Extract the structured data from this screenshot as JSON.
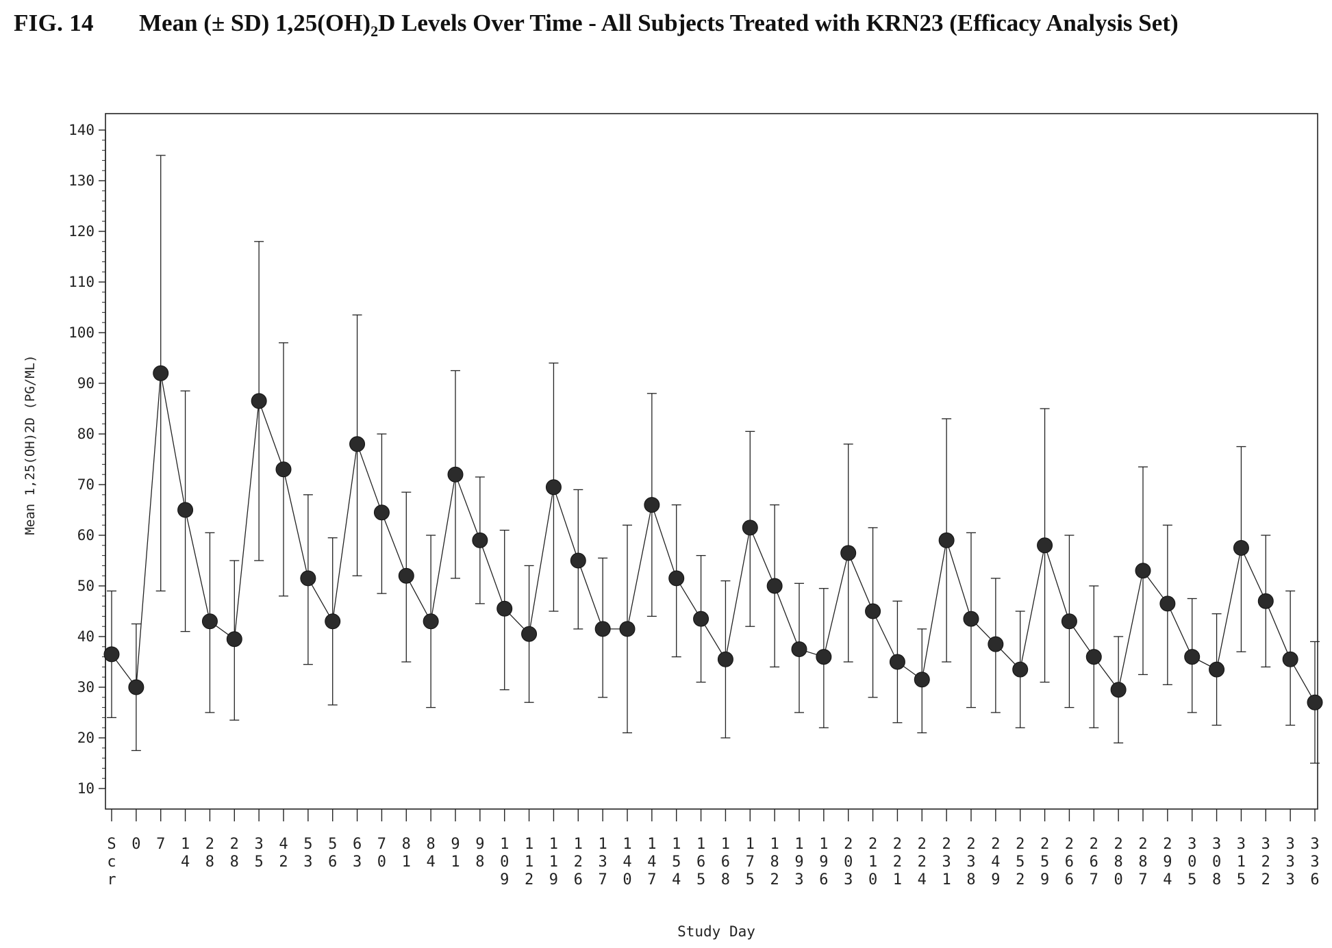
{
  "figure": {
    "label": "FIG. 14",
    "title_main": "Mean (± SD) 1,25(OH)",
    "title_sub": "2",
    "title_rest": "D Levels Over Time - All Subjects Treated with KRN23 (Efficacy Analysis Set)"
  },
  "chart_data": {
    "type": "line",
    "title": "Mean (± SD) 1,25(OH)2D Levels Over Time - All Subjects Treated with KRN23 (Efficacy Analysis Set)",
    "xlabel": "Study Day",
    "ylabel": "Mean 1,25(OH)2D (PG/ML)",
    "ylim": [
      10,
      140
    ],
    "yticks": [
      10,
      20,
      30,
      40,
      50,
      60,
      70,
      80,
      90,
      100,
      110,
      120,
      130,
      140
    ],
    "grid": false,
    "marker": "filled circle",
    "error_bars": "± SD",
    "categories": [
      "Scr",
      "0",
      "7",
      "14",
      "28",
      "28",
      "35",
      "42",
      "53",
      "56",
      "63",
      "70",
      "81",
      "84",
      "91",
      "98",
      "109",
      "112",
      "119",
      "126",
      "137",
      "140",
      "147",
      "154",
      "165",
      "168",
      "175",
      "182",
      "193",
      "196",
      "203",
      "210",
      "221",
      "224",
      "231",
      "238",
      "249",
      "252",
      "259",
      "266",
      "267",
      "280",
      "287",
      "294",
      "305",
      "308",
      "315",
      "322",
      "333",
      "336"
    ],
    "values": [
      36.5,
      30,
      92,
      65,
      43,
      39.5,
      86.5,
      73,
      51.5,
      43,
      78,
      64.5,
      52,
      43,
      72,
      59,
      45.5,
      40.5,
      69.5,
      55,
      41.5,
      41.5,
      66,
      51.5,
      43.5,
      35.5,
      61.5,
      50,
      37.5,
      36,
      56.5,
      45,
      35,
      31.5,
      59,
      43.5,
      38.5,
      33.5,
      58,
      43,
      36,
      29.5,
      53,
      46.5,
      36,
      33.5,
      57.5,
      47,
      35.5,
      27
    ],
    "upper": [
      49,
      42.5,
      135,
      88.5,
      60.5,
      55,
      118,
      98,
      68,
      59.5,
      103.5,
      80,
      68.5,
      60,
      92.5,
      71.5,
      61,
      54,
      94,
      69,
      55.5,
      62,
      88,
      66,
      56,
      51,
      80.5,
      66,
      50.5,
      49.5,
      78,
      61.5,
      47,
      41.5,
      83,
      60.5,
      51.5,
      45,
      85,
      60,
      50,
      40,
      73.5,
      62,
      47.5,
      44.5,
      77.5,
      60,
      49,
      39
    ],
    "lower": [
      24,
      17.5,
      49,
      41,
      25,
      23.5,
      55,
      48,
      34.5,
      26.5,
      52,
      48.5,
      35,
      26,
      51.5,
      46.5,
      29.5,
      27,
      45,
      41.5,
      28,
      21,
      44,
      36,
      31,
      20,
      42,
      34,
      25,
      22,
      35,
      28,
      23,
      21,
      35,
      26,
      25,
      22,
      31,
      26,
      22,
      19,
      32.5,
      30.5,
      25,
      22.5,
      37,
      34,
      22.5,
      15
    ]
  }
}
